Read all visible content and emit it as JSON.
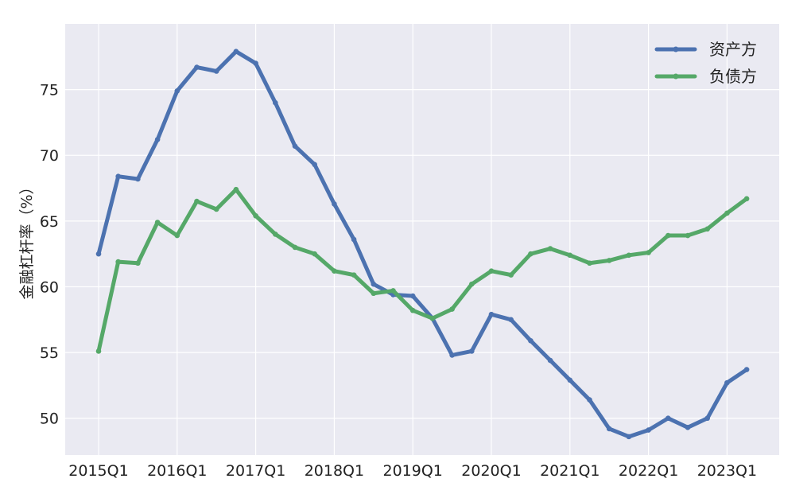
{
  "chart_data": {
    "type": "line",
    "ylabel": "金融杠杆率（%）",
    "xlabel": "",
    "ylim": [
      47.2,
      80.0
    ],
    "yticks": [
      50,
      55,
      60,
      65,
      70,
      75
    ],
    "xtick_labels": [
      "2015Q1",
      "2016Q1",
      "2017Q1",
      "2018Q1",
      "2019Q1",
      "2020Q1",
      "2021Q1",
      "2022Q1",
      "2023Q1"
    ],
    "xtick_positions": [
      0,
      4,
      8,
      12,
      16,
      20,
      24,
      28,
      32
    ],
    "x": [
      0,
      1,
      2,
      3,
      4,
      5,
      6,
      7,
      8,
      9,
      10,
      11,
      12,
      13,
      14,
      15,
      16,
      17,
      18,
      19,
      20,
      21,
      22,
      23,
      24,
      25,
      26,
      27,
      28,
      29,
      30,
      31,
      32,
      33
    ],
    "grid": true,
    "legend_position": "top-right",
    "series": [
      {
        "name": "资产方",
        "color": "#4C72B0",
        "values": [
          62.5,
          68.4,
          68.2,
          71.2,
          74.9,
          76.7,
          76.4,
          77.9,
          77.0,
          74.0,
          70.7,
          69.3,
          66.3,
          63.6,
          60.2,
          59.4,
          59.3,
          57.6,
          54.8,
          55.1,
          57.9,
          57.5,
          55.9,
          54.4,
          52.9,
          51.4,
          49.2,
          48.6,
          49.1,
          50.0,
          49.3,
          50.0,
          52.7,
          53.7
        ]
      },
      {
        "name": "负债方",
        "color": "#55A868",
        "values": [
          55.1,
          61.9,
          61.8,
          64.9,
          63.9,
          66.5,
          65.9,
          67.4,
          65.4,
          64.0,
          63.0,
          62.5,
          61.2,
          60.9,
          59.5,
          59.7,
          58.2,
          57.6,
          58.3,
          60.2,
          61.2,
          60.9,
          62.5,
          62.9,
          62.4,
          61.8,
          62.0,
          62.4,
          62.6,
          63.9,
          63.9,
          64.4,
          65.6,
          66.7
        ]
      }
    ]
  }
}
